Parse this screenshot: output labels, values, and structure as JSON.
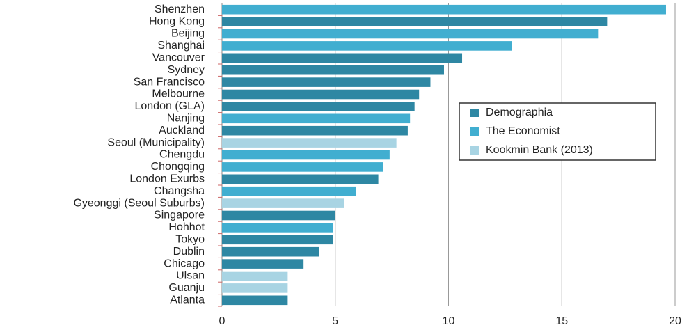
{
  "chart_data": {
    "type": "bar",
    "orientation": "horizontal",
    "categories": [
      "Shenzhen",
      "Hong Kong",
      "Beijing",
      "Shanghai",
      "Vancouver",
      "Sydney",
      "San Francisco",
      "Melbourne",
      "London (GLA)",
      "Nanjing",
      "Auckland",
      "Seoul (Municipality)",
      "Chengdu",
      "Chongqing",
      "London Exurbs",
      "Changsha",
      "Gyeonggi (Seoul Suburbs)",
      "Singapore",
      "Hohhot",
      "Tokyo",
      "Dublin",
      "Chicago",
      "Ulsan",
      "Guanju",
      "Atlanta"
    ],
    "series": [
      {
        "name": "Demographia",
        "color": "#2e87a3",
        "values": [
          null,
          17.0,
          null,
          null,
          10.6,
          9.8,
          9.2,
          8.7,
          8.5,
          null,
          8.2,
          null,
          null,
          null,
          6.9,
          null,
          null,
          5.0,
          null,
          4.9,
          4.3,
          3.6,
          null,
          null,
          2.9
        ]
      },
      {
        "name": "The Economist",
        "color": "#41aed0",
        "values": [
          19.6,
          null,
          16.6,
          12.8,
          null,
          null,
          null,
          null,
          null,
          8.3,
          null,
          null,
          7.4,
          7.1,
          null,
          5.9,
          null,
          null,
          4.9,
          null,
          null,
          null,
          null,
          null,
          null
        ]
      },
      {
        "name": "Kookmin Bank (2013)",
        "color": "#a8d4e3",
        "values": [
          null,
          null,
          null,
          null,
          null,
          null,
          null,
          null,
          null,
          null,
          null,
          7.7,
          null,
          null,
          null,
          null,
          5.4,
          null,
          null,
          null,
          null,
          null,
          2.9,
          2.9,
          null
        ]
      }
    ],
    "xlim": [
      0,
      20
    ],
    "xticks": [
      0,
      5,
      10,
      15,
      20
    ],
    "grid": true
  }
}
